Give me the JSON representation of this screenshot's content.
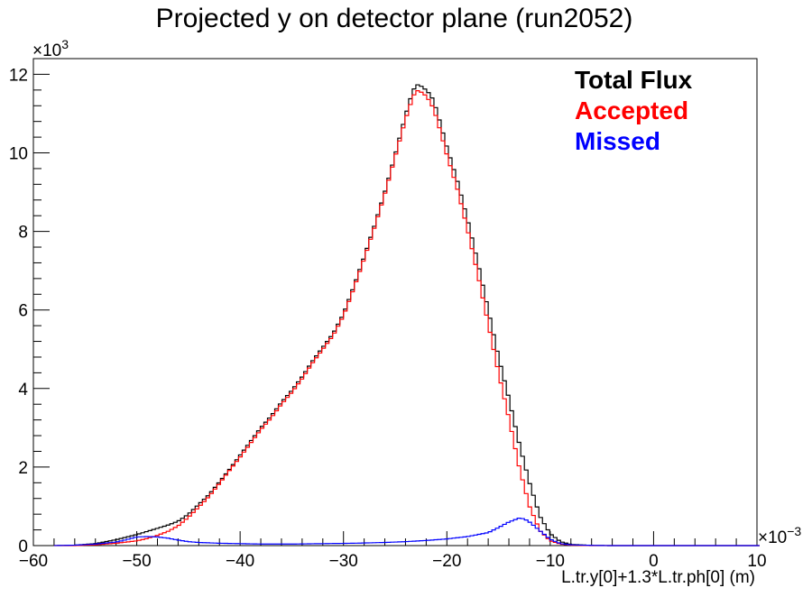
{
  "chart_data": {
    "type": "line",
    "title": "Projected y on detector plane (run2052)",
    "xlabel": "L.tr.y[0]+1.3*L.tr.ph[0] (m)",
    "ylabel": "",
    "x_multiplier": "×10",
    "x_exponent": "−3",
    "y_multiplier": "×10",
    "y_exponent": "3",
    "xlim": [
      -60,
      10
    ],
    "ylim": [
      0,
      12.4
    ],
    "x_ticks": [
      -60,
      -50,
      -40,
      -30,
      -20,
      -10,
      0,
      10
    ],
    "x_tick_labels": [
      "−60",
      "−50",
      "−40",
      "−30",
      "−20",
      "−10",
      "0",
      "10"
    ],
    "y_ticks": [
      0,
      2,
      4,
      6,
      8,
      10,
      12
    ],
    "y_tick_labels": [
      "0",
      "2",
      "4",
      "6",
      "8",
      "10",
      "12"
    ],
    "grid": false,
    "legend_position": "top-right",
    "series": [
      {
        "name": "Total Flux",
        "color": "#000000",
        "points": [
          [
            -58,
            0
          ],
          [
            -56,
            0.01
          ],
          [
            -54,
            0.05
          ],
          [
            -52,
            0.15
          ],
          [
            -50,
            0.28
          ],
          [
            -49,
            0.36
          ],
          [
            -48,
            0.44
          ],
          [
            -47,
            0.52
          ],
          [
            -46,
            0.62
          ],
          [
            -45,
            0.8
          ],
          [
            -44,
            1.05
          ],
          [
            -43,
            1.3
          ],
          [
            -42,
            1.62
          ],
          [
            -41,
            1.95
          ],
          [
            -40,
            2.3
          ],
          [
            -39,
            2.65
          ],
          [
            -38,
            3.0
          ],
          [
            -37,
            3.3
          ],
          [
            -36,
            3.65
          ],
          [
            -35,
            3.95
          ],
          [
            -34,
            4.3
          ],
          [
            -33,
            4.7
          ],
          [
            -32,
            5.05
          ],
          [
            -31,
            5.4
          ],
          [
            -30,
            5.9
          ],
          [
            -29,
            6.6
          ],
          [
            -28,
            7.35
          ],
          [
            -27,
            8.15
          ],
          [
            -26,
            9.0
          ],
          [
            -25,
            9.95
          ],
          [
            -24,
            10.95
          ],
          [
            -23.5,
            11.4
          ],
          [
            -23,
            11.75
          ],
          [
            -22.5,
            11.7
          ],
          [
            -22,
            11.6
          ],
          [
            -21.5,
            11.45
          ],
          [
            -21,
            11.1
          ],
          [
            -20,
            10.15
          ],
          [
            -19,
            9.3
          ],
          [
            -18,
            8.3
          ],
          [
            -17,
            7.2
          ],
          [
            -16,
            6.0
          ],
          [
            -15,
            4.8
          ],
          [
            -14,
            3.75
          ],
          [
            -13,
            2.6
          ],
          [
            -12,
            1.6
          ],
          [
            -11,
            0.75
          ],
          [
            -10,
            0.3
          ],
          [
            -9,
            0.1
          ],
          [
            -8,
            0.03
          ],
          [
            -6,
            0.005
          ],
          [
            -4,
            0
          ]
        ]
      },
      {
        "name": "Accepted",
        "color": "#ff0000",
        "points": [
          [
            -58,
            0
          ],
          [
            -56,
            0
          ],
          [
            -54,
            0.02
          ],
          [
            -52,
            0.06
          ],
          [
            -50,
            0.12
          ],
          [
            -49,
            0.18
          ],
          [
            -48,
            0.26
          ],
          [
            -47,
            0.36
          ],
          [
            -46,
            0.5
          ],
          [
            -45,
            0.72
          ],
          [
            -44,
            0.98
          ],
          [
            -43,
            1.25
          ],
          [
            -42,
            1.58
          ],
          [
            -41,
            1.92
          ],
          [
            -40,
            2.25
          ],
          [
            -39,
            2.6
          ],
          [
            -38,
            2.95
          ],
          [
            -37,
            3.25
          ],
          [
            -36,
            3.6
          ],
          [
            -35,
            3.9
          ],
          [
            -34,
            4.25
          ],
          [
            -33,
            4.65
          ],
          [
            -32,
            5.0
          ],
          [
            -31,
            5.35
          ],
          [
            -30,
            5.85
          ],
          [
            -29,
            6.55
          ],
          [
            -28,
            7.3
          ],
          [
            -27,
            8.1
          ],
          [
            -26,
            8.95
          ],
          [
            -25,
            9.9
          ],
          [
            -24,
            10.85
          ],
          [
            -23.5,
            11.25
          ],
          [
            -23,
            11.6
          ],
          [
            -22.5,
            11.55
          ],
          [
            -22,
            11.45
          ],
          [
            -21.5,
            11.25
          ],
          [
            -21,
            10.9
          ],
          [
            -20,
            9.95
          ],
          [
            -19,
            9.1
          ],
          [
            -18,
            8.05
          ],
          [
            -17,
            6.9
          ],
          [
            -16,
            5.65
          ],
          [
            -15,
            4.4
          ],
          [
            -14,
            3.25
          ],
          [
            -13,
            2.0
          ],
          [
            -12,
            1.0
          ],
          [
            -11,
            0.38
          ],
          [
            -10,
            0.12
          ],
          [
            -9,
            0.04
          ],
          [
            -8,
            0.01
          ],
          [
            -6,
            0
          ],
          [
            -4,
            0
          ]
        ]
      },
      {
        "name": "Missed",
        "color": "#0000ff",
        "points": [
          [
            -58,
            0
          ],
          [
            -56,
            0.01
          ],
          [
            -54,
            0.04
          ],
          [
            -52,
            0.09
          ],
          [
            -51,
            0.15
          ],
          [
            -50,
            0.22
          ],
          [
            -49,
            0.23
          ],
          [
            -48,
            0.22
          ],
          [
            -47,
            0.19
          ],
          [
            -46,
            0.14
          ],
          [
            -45,
            0.1
          ],
          [
            -44,
            0.08
          ],
          [
            -43,
            0.07
          ],
          [
            -42,
            0.06
          ],
          [
            -40,
            0.05
          ],
          [
            -38,
            0.04
          ],
          [
            -35,
            0.04
          ],
          [
            -32,
            0.05
          ],
          [
            -29,
            0.06
          ],
          [
            -26,
            0.08
          ],
          [
            -24,
            0.1
          ],
          [
            -22,
            0.13
          ],
          [
            -20,
            0.17
          ],
          [
            -18,
            0.23
          ],
          [
            -16,
            0.33
          ],
          [
            -15,
            0.46
          ],
          [
            -14,
            0.6
          ],
          [
            -13,
            0.7
          ],
          [
            -12.5,
            0.68
          ],
          [
            -12,
            0.6
          ],
          [
            -11,
            0.38
          ],
          [
            -10,
            0.16
          ],
          [
            -9,
            0.05
          ],
          [
            -8,
            0.02
          ],
          [
            -6,
            0.005
          ],
          [
            -4,
            0
          ],
          [
            0,
            0
          ],
          [
            10,
            0
          ]
        ]
      }
    ]
  }
}
